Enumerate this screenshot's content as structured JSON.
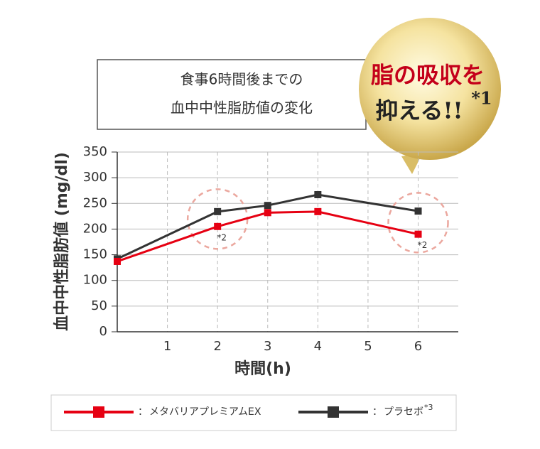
{
  "chart_data": {
    "type": "line",
    "title": [
      "食事6時間後までの",
      "血中中性脂肪値の変化"
    ],
    "y_label": "血中中性脂肪値 (mg/dl)",
    "x_label": "時間(h)",
    "x": [
      0,
      2,
      3,
      4,
      6
    ],
    "series": [
      {
        "name": "メタバリアプレミアムEX",
        "color": "#e60012",
        "values": [
          137,
          205,
          232,
          234,
          190
        ]
      },
      {
        "name": "プラセボ",
        "note": "*3",
        "color": "#333333",
        "values": [
          142,
          234,
          246,
          267,
          235
        ]
      }
    ],
    "legend_separator": "：",
    "xlim": [
      0,
      6.8
    ],
    "xticks": [
      1,
      2,
      3,
      4,
      5,
      6
    ],
    "ylim": [
      0,
      350
    ],
    "yticks": [
      0,
      50,
      100,
      150,
      200,
      250,
      300,
      350
    ],
    "grid": true,
    "annotations": [
      {
        "text": "*2",
        "x": 2
      },
      {
        "text": "*2",
        "x": 6
      }
    ],
    "badge": {
      "line1": "脂の吸収を",
      "line2": "抑える!!",
      "note": "*1"
    }
  }
}
